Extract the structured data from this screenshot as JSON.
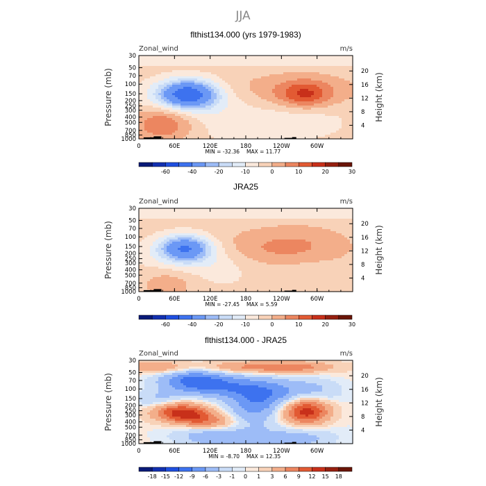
{
  "figure": {
    "title": "JJA"
  },
  "colors": {
    "diverging": [
      "#0a1a78",
      "#1230b0",
      "#1f4fe0",
      "#3d72ef",
      "#6b98f5",
      "#9dbcf7",
      "#c9dcf7",
      "#e2ecf8",
      "#fbe9dc",
      "#f8d2b8",
      "#f3ae8a",
      "#ec8660",
      "#e25a33",
      "#c8301a",
      "#962010",
      "#6a1508"
    ]
  },
  "chart_data": [
    {
      "type": "heatmap",
      "title": "flthist134.000 (yrs 1979-1983)",
      "variable_label": "Zonal_wind",
      "units_label": "m/s",
      "ylabel": "Pressure (mb)",
      "ylabel_right": "Height (km)",
      "x_ticks": [
        "0",
        "60E",
        "120E",
        "180",
        "120W",
        "60W"
      ],
      "x_range_deg": [
        0,
        330
      ],
      "y_ticks_pressure": [
        "30",
        "50",
        "70",
        "100",
        "150",
        "200",
        "250",
        "300",
        "400",
        "500",
        "700",
        "850",
        "1000"
      ],
      "y_ticks_height_km": [
        "20",
        "16",
        "12",
        "8",
        "4"
      ],
      "min_label": "MIN = -32.36",
      "max_label": "MAX = 11.77",
      "contour_levels": [
        "-60",
        "-40",
        "-20",
        "-10",
        "0",
        "10",
        "20",
        "30"
      ],
      "features": [
        {
          "lon": 82,
          "p": 150,
          "value": -32.36
        },
        {
          "lon": 280,
          "p": 150,
          "value": 11.77
        },
        {
          "lon": 45,
          "p": 400,
          "value": 10
        }
      ]
    },
    {
      "type": "heatmap",
      "title": "JRA25",
      "variable_label": "Zonal_wind",
      "units_label": "m/s",
      "ylabel": "Pressure (mb)",
      "ylabel_right": "Height (km)",
      "x_ticks": [
        "0",
        "60E",
        "120E",
        "180",
        "120W",
        "60W"
      ],
      "x_range_deg": [
        0,
        330
      ],
      "y_ticks_pressure": [
        "30",
        "50",
        "70",
        "100",
        "150",
        "200",
        "250",
        "300",
        "400",
        "500",
        "700",
        "850",
        "1000"
      ],
      "y_ticks_height_km": [
        "20",
        "16",
        "12",
        "8",
        "4"
      ],
      "min_label": "MIN = -27.45",
      "max_label": "MAX =   5.59",
      "contour_levels": [
        "-60",
        "-40",
        "-20",
        "-10",
        "0",
        "10",
        "20",
        "30"
      ],
      "features": [
        {
          "lon": 78,
          "p": 150,
          "value": -27.45
        },
        {
          "lon": 280,
          "p": 150,
          "value": 5.59
        }
      ]
    },
    {
      "type": "heatmap",
      "title": "flthist134.000 - JRA25",
      "variable_label": "Zonal_wind",
      "units_label": "m/s",
      "ylabel": "Pressure (mb)",
      "ylabel_right": "Height (km)",
      "x_ticks": [
        "0",
        "60E",
        "120E",
        "180",
        "120W",
        "60W"
      ],
      "x_range_deg": [
        0,
        330
      ],
      "y_ticks_pressure": [
        "30",
        "50",
        "70",
        "100",
        "150",
        "200",
        "250",
        "300",
        "400",
        "500",
        "700",
        "850",
        "1000"
      ],
      "y_ticks_height_km": [
        "20",
        "16",
        "12",
        "8",
        "4"
      ],
      "min_label": "MIN = -8.70",
      "max_label": "MAX = 12.35",
      "contour_levels": [
        "-18",
        "-15",
        "-12",
        "-9",
        "-6",
        "-3",
        "-1",
        "0",
        "1",
        "3",
        "6",
        "9",
        "12",
        "15",
        "18"
      ],
      "features": [
        {
          "lon": 85,
          "p": 70,
          "value": -8.7
        },
        {
          "lon": 285,
          "p": 250,
          "value": 12.35
        },
        {
          "lon": 55,
          "p": 250,
          "value": 10
        }
      ]
    }
  ]
}
